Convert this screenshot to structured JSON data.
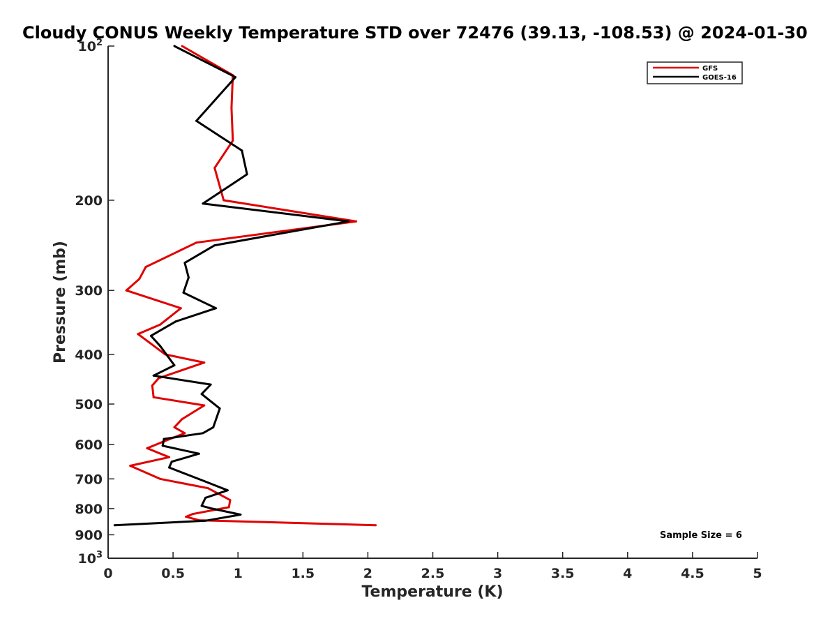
{
  "chart_data": {
    "type": "line",
    "title": "Cloudy CONUS Weekly Temperature STD over 72476 (39.13, -108.53) @ 2024-01-30",
    "xlabel": "Temperature (K)",
    "ylabel": "Pressure (mb)",
    "xlim": [
      0,
      5
    ],
    "ylim": [
      100,
      1000
    ],
    "y_scale": "log",
    "y_reversed": true,
    "grid": false,
    "legend_position": "top-right",
    "x_ticks": [
      "0",
      "0.5",
      "1",
      "1.5",
      "2",
      "2.5",
      "3",
      "3.5",
      "4",
      "4.5",
      "5"
    ],
    "x_tick_values": [
      0,
      0.5,
      1,
      1.5,
      2,
      2.5,
      3,
      3.5,
      4,
      4.5,
      5
    ],
    "y_ticks": [
      {
        "value": 100,
        "base": "10",
        "exp": "2"
      },
      {
        "value": 200,
        "label": "200"
      },
      {
        "value": 300,
        "label": "300"
      },
      {
        "value": 400,
        "label": "400"
      },
      {
        "value": 500,
        "label": "500"
      },
      {
        "value": 600,
        "label": "600"
      },
      {
        "value": 700,
        "label": "700"
      },
      {
        "value": 800,
        "label": "800"
      },
      {
        "value": 900,
        "label": "900"
      },
      {
        "value": 1000,
        "base": "10",
        "exp": "3"
      }
    ],
    "series": [
      {
        "name": "GFS",
        "color": "#e00000",
        "points": [
          [
            0.57,
            100
          ],
          [
            0.96,
            114
          ],
          [
            0.95,
            132
          ],
          [
            0.96,
            153
          ],
          [
            0.82,
            173
          ],
          [
            0.89,
            200
          ],
          [
            1.91,
            220
          ],
          [
            0.68,
            242
          ],
          [
            0.29,
            270
          ],
          [
            0.24,
            285
          ],
          [
            0.14,
            300
          ],
          [
            0.56,
            325
          ],
          [
            0.4,
            350
          ],
          [
            0.23,
            365
          ],
          [
            0.44,
            400
          ],
          [
            0.74,
            415
          ],
          [
            0.39,
            445
          ],
          [
            0.34,
            460
          ],
          [
            0.35,
            485
          ],
          [
            0.74,
            503
          ],
          [
            0.57,
            535
          ],
          [
            0.51,
            555
          ],
          [
            0.59,
            570
          ],
          [
            0.44,
            590
          ],
          [
            0.3,
            610
          ],
          [
            0.47,
            635
          ],
          [
            0.17,
            660
          ],
          [
            0.4,
            700
          ],
          [
            0.77,
            730
          ],
          [
            0.94,
            770
          ],
          [
            0.93,
            795
          ],
          [
            0.65,
            820
          ],
          [
            0.6,
            830
          ],
          [
            0.7,
            843
          ],
          [
            2.06,
            862
          ]
        ]
      },
      {
        "name": "GOES-16",
        "color": "#000000",
        "points": [
          [
            0.51,
            100
          ],
          [
            0.98,
            115
          ],
          [
            0.68,
            140
          ],
          [
            1.03,
            160
          ],
          [
            1.07,
            178
          ],
          [
            0.73,
            203
          ],
          [
            1.85,
            220
          ],
          [
            0.82,
            245
          ],
          [
            0.59,
            265
          ],
          [
            0.62,
            283
          ],
          [
            0.58,
            303
          ],
          [
            0.83,
            325
          ],
          [
            0.52,
            345
          ],
          [
            0.33,
            368
          ],
          [
            0.4,
            385
          ],
          [
            0.51,
            420
          ],
          [
            0.35,
            440
          ],
          [
            0.79,
            458
          ],
          [
            0.72,
            478
          ],
          [
            0.86,
            510
          ],
          [
            0.81,
            555
          ],
          [
            0.73,
            570
          ],
          [
            0.43,
            585
          ],
          [
            0.42,
            603
          ],
          [
            0.7,
            625
          ],
          [
            0.49,
            648
          ],
          [
            0.47,
            665
          ],
          [
            0.74,
            707
          ],
          [
            0.92,
            737
          ],
          [
            0.75,
            762
          ],
          [
            0.72,
            790
          ],
          [
            0.8,
            800
          ],
          [
            1.02,
            822
          ],
          [
            0.75,
            845
          ],
          [
            0.05,
            862
          ]
        ]
      }
    ],
    "annotation": "Sample Size = 6"
  }
}
